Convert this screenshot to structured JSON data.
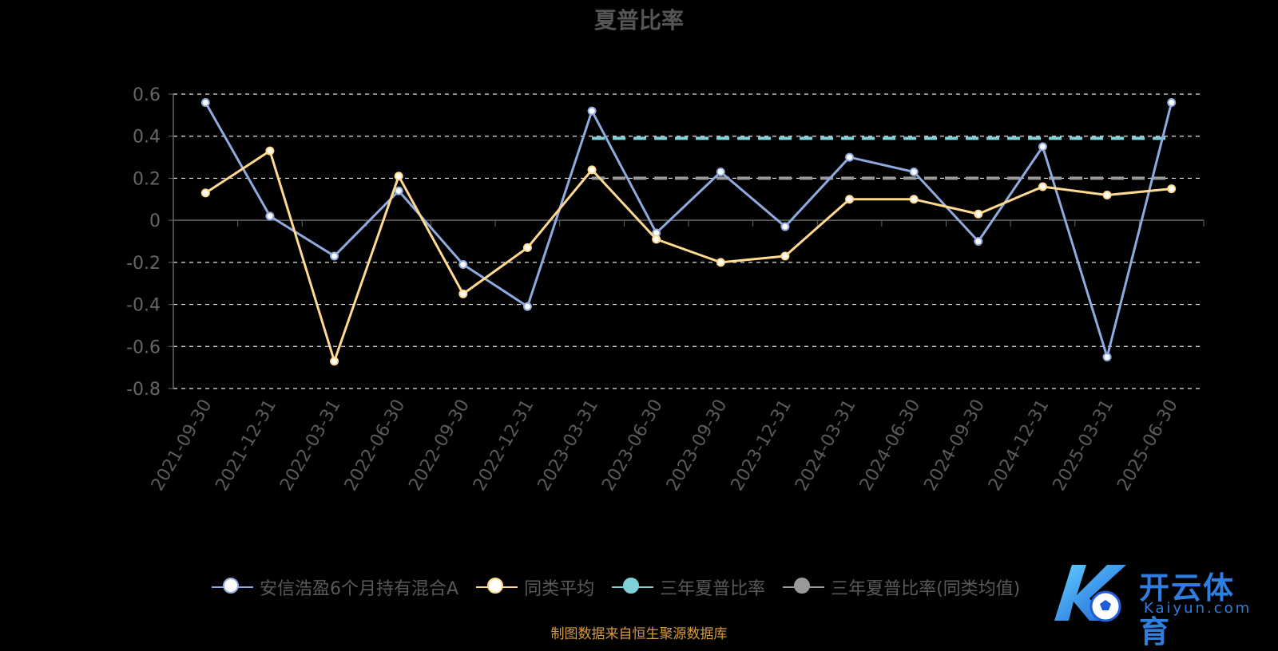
{
  "title": "夏普比率",
  "legend": [
    {
      "label": "安信浩盈6个月持有混合A",
      "line": "#8faadc",
      "fill": "#ffffff"
    },
    {
      "label": "同类平均",
      "line": "#ffd98e",
      "fill": "#ffffff"
    },
    {
      "label": "三年夏普比率",
      "line": "#7fd1d8",
      "fill": "#7fd1d8"
    },
    {
      "label": "三年夏普比率(同类均值)",
      "line": "#999999",
      "fill": "#999999"
    }
  ],
  "footer": "制图数据来自恒生聚源数据库",
  "watermark": {
    "main": "开云体育",
    "sub": "Kaiyun.com"
  },
  "chart_data": {
    "type": "line",
    "title": "夏普比率",
    "categories": [
      "2021-09-30",
      "2021-12-31",
      "2022-03-31",
      "2022-06-30",
      "2022-09-30",
      "2022-12-31",
      "2023-03-31",
      "2023-06-30",
      "2023-09-30",
      "2023-12-31",
      "2024-03-31",
      "2024-06-30",
      "2024-09-30",
      "2024-12-31",
      "2025-03-31",
      "2025-06-30"
    ],
    "ylim": [
      -0.8,
      0.6
    ],
    "yticks": [
      0.6,
      0.4,
      0.2,
      0,
      -0.2,
      -0.4,
      -0.6,
      -0.8
    ],
    "ytick_labels": [
      "0.6",
      "0.4",
      "0.2",
      "0",
      "-0.2",
      "-0.4",
      "-0.6",
      "-0.8"
    ],
    "grid": true,
    "legend_position": "bottom",
    "series": [
      {
        "name": "安信浩盈6个月持有混合A",
        "color": "#8faadc",
        "values": [
          0.56,
          0.02,
          -0.17,
          0.14,
          -0.21,
          -0.41,
          0.52,
          -0.06,
          0.23,
          -0.03,
          0.3,
          0.23,
          -0.1,
          0.35,
          -0.65,
          0.56
        ]
      },
      {
        "name": "同类平均",
        "color": "#ffd98e",
        "values": [
          0.13,
          0.33,
          -0.67,
          0.21,
          -0.35,
          -0.13,
          0.24,
          -0.09,
          -0.2,
          -0.17,
          0.1,
          0.1,
          0.03,
          0.16,
          0.12,
          0.15
        ]
      },
      {
        "name": "三年夏普比率",
        "color": "#7fd1d8",
        "style": "dashed",
        "values": [
          null,
          null,
          null,
          null,
          null,
          null,
          0.39,
          0.39,
          0.39,
          0.39,
          0.39,
          0.39,
          0.39,
          0.39,
          0.39,
          0.39
        ]
      },
      {
        "name": "三年夏普比率(同类均值)",
        "color": "#999999",
        "style": "dashed",
        "values": [
          null,
          null,
          null,
          null,
          null,
          null,
          0.2,
          0.2,
          0.2,
          0.2,
          0.2,
          0.2,
          0.2,
          0.2,
          0.2,
          0.2
        ]
      }
    ]
  }
}
